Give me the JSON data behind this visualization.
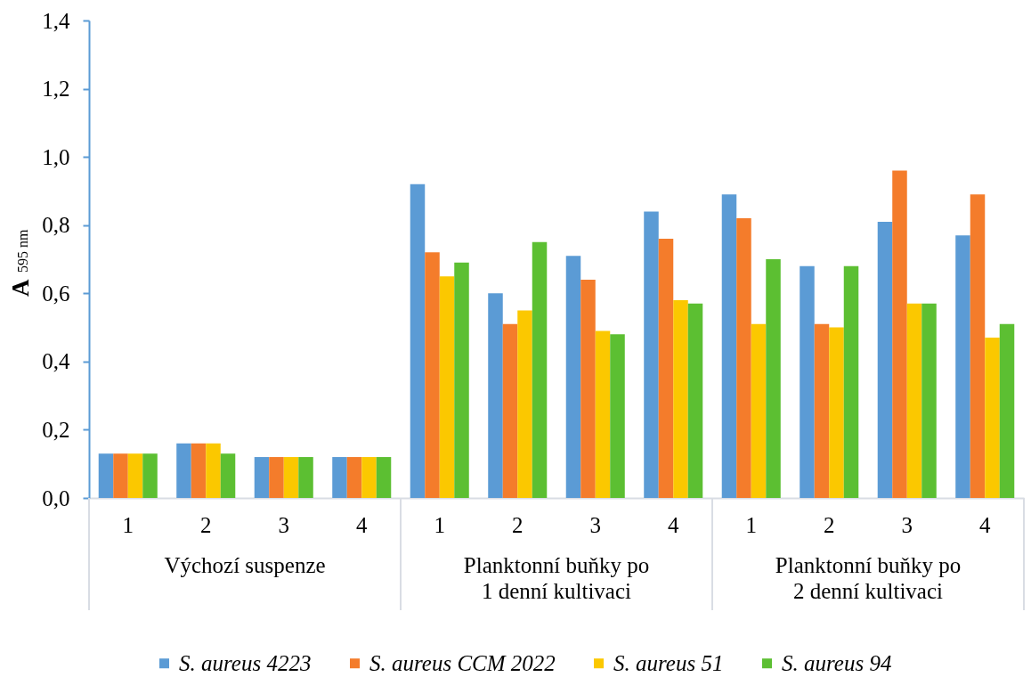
{
  "chart_data": {
    "type": "bar",
    "ylabel": "A$_{595 nm}$",
    "categories": [
      "1",
      "2",
      "3",
      "4",
      "1",
      "2",
      "3",
      "4",
      "1",
      "2",
      "3",
      "4"
    ],
    "series": [
      {
        "name": "S. aureus 4223",
        "color": "#5b9bd5",
        "values": [
          0.13,
          0.16,
          0.12,
          0.12,
          0.92,
          0.6,
          0.71,
          0.84,
          0.89,
          0.68,
          0.81,
          0.77
        ]
      },
      {
        "name": "S. aureus CCM 2022",
        "color": "#f47c2b",
        "values": [
          0.13,
          0.16,
          0.12,
          0.12,
          0.72,
          0.51,
          0.64,
          0.76,
          0.82,
          0.51,
          0.96,
          0.89
        ]
      },
      {
        "name": "S. aureus 51",
        "color": "#fbc800",
        "values": [
          0.13,
          0.16,
          0.12,
          0.12,
          0.65,
          0.55,
          0.49,
          0.58,
          0.51,
          0.5,
          0.57,
          0.47
        ]
      },
      {
        "name": "S. aureus 94",
        "color": "#5cbf32",
        "values": [
          0.13,
          0.13,
          0.12,
          0.12,
          0.69,
          0.75,
          0.48,
          0.57,
          0.7,
          0.68,
          0.57,
          0.51
        ]
      }
    ],
    "ylim": [
      0,
      1.4
    ],
    "yticks": [
      {
        "value": 0,
        "label": "0,0"
      },
      {
        "value": 0.2,
        "label": "0,2"
      },
      {
        "value": 0.4,
        "label": "0,4"
      },
      {
        "value": 0.6,
        "label": "0,6"
      },
      {
        "value": 0.8,
        "label": "0,8"
      },
      {
        "value": 1.0,
        "label": "1,0"
      },
      {
        "value": 1.2,
        "label": "1,2"
      },
      {
        "value": 1.4,
        "label": "1,4"
      }
    ],
    "grid": false,
    "legend": "bottom",
    "annotations": [
      "Výchozí suspenze",
      "Planktonní buňky po 1 denní kultivaci",
      "Planktonní buňky po 2 denní kultivaci"
    ]
  }
}
